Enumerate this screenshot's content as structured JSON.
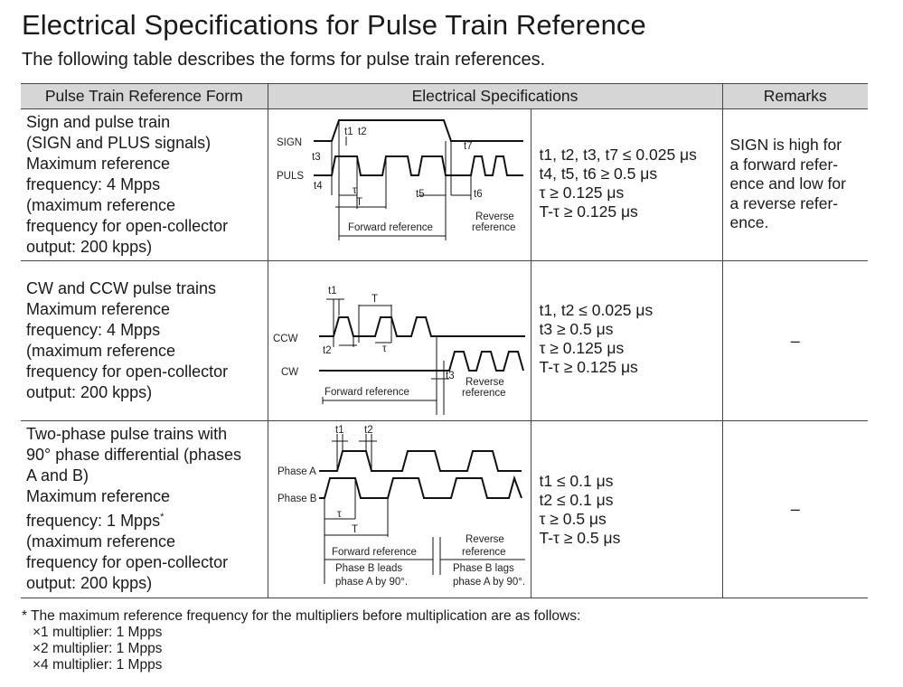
{
  "title": "Electrical Specifications for Pulse Train Reference",
  "subtitle": "The following table describes the forms for pulse train references.",
  "table": {
    "headers": [
      "Pulse Train Reference Form",
      "Electrical Specifications",
      "Remarks"
    ],
    "rows": [
      {
        "form_lines": [
          "Sign and pulse train",
          "(SIGN and PLUS signals)",
          "Maximum reference",
          "frequency: 4 Mpps",
          "(maximum reference",
          "frequency for open-collector",
          "output: 200 kpps)"
        ],
        "diagram": {
          "signals": [
            "SIGN",
            "PULS"
          ],
          "labels": [
            "t1",
            "t2",
            "t3",
            "t4",
            "τ",
            "T",
            "t5",
            "t6",
            "t7"
          ],
          "forward": "Forward reference",
          "reverse_lines": [
            "Reverse",
            "reference"
          ]
        },
        "specs": [
          "t1, t2, t3, t7 ≤ 0.025 μs",
          "t4, t5, t6 ≥ 0.5 μs",
          "τ ≥ 0.125 μs",
          "T-τ ≥ 0.125 μs"
        ],
        "remarks": [
          "SIGN is high for",
          "a forward refer-",
          "ence and low for",
          "a reverse refer-",
          "ence."
        ]
      },
      {
        "form_lines": [
          "CW and CCW pulse trains",
          "Maximum reference",
          "frequency: 4 Mpps",
          "(maximum reference",
          "frequency for open-collector",
          "output: 200 kpps)"
        ],
        "diagram": {
          "signals": [
            "CCW",
            "CW"
          ],
          "labels": [
            "t1",
            "T",
            "t2",
            "τ",
            "t3"
          ],
          "forward": "Forward reference",
          "reverse_lines": [
            "Reverse",
            "reference"
          ]
        },
        "specs": [
          "t1, t2 ≤ 0.025 μs",
          "t3 ≥ 0.5 μs",
          "τ ≥ 0.125 μs",
          "T-τ ≥ 0.125 μs"
        ],
        "remarks_text": "–"
      },
      {
        "form_lines": [
          "Two-phase pulse trains with",
          "90° phase differential (phases",
          "A and B)",
          "Maximum reference",
          "frequency: 1 Mpps",
          "(maximum reference",
          "frequency for open-collector",
          "output: 200 kpps)"
        ],
        "footnote_mark": "*",
        "diagram": {
          "signals": [
            "Phase A",
            "Phase B"
          ],
          "labels": [
            "t1",
            "t2",
            "τ",
            "T"
          ],
          "forward": "Forward reference",
          "forward_sub": [
            "Phase B leads",
            "phase A by 90°."
          ],
          "reverse_lines": [
            "Reverse",
            "reference"
          ],
          "reverse_sub": [
            "Phase B lags",
            "phase A by 90°."
          ]
        },
        "specs": [
          "t1 ≤ 0.1 μs",
          "t2 ≤ 0.1 μs",
          "τ ≥ 0.5 μs",
          "T-τ ≥ 0.5 μs"
        ],
        "remarks_text": "–"
      }
    ]
  },
  "footnote": {
    "text": "* The maximum reference frequency for the multipliers before multiplication are as follows:",
    "items": [
      "×1 multiplier: 1 Mpps",
      "×2 multiplier: 1 Mpps",
      "×4 multiplier: 1 Mpps"
    ]
  }
}
